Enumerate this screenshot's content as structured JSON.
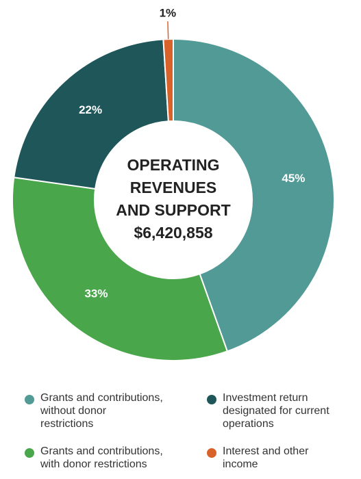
{
  "chart_data": {
    "type": "donut",
    "center_title": [
      "OPERATING",
      "REVENUES",
      "AND SUPPORT"
    ],
    "total_label": "$6,420,858",
    "categories": [
      "Grants and contributions,\nwithout  donor\nrestrictions",
      "Grants and contributions,\nwith donor restrictions",
      "Investment return\ndesignated for current\noperations",
      "Interest and other\nincome"
    ],
    "values": [
      45,
      33,
      22,
      1
    ],
    "value_labels": [
      "45%",
      "33%",
      "22%",
      "1%"
    ],
    "colors": [
      "#529a96",
      "#4aa64a",
      "#1f5659",
      "#d9622b"
    ]
  }
}
